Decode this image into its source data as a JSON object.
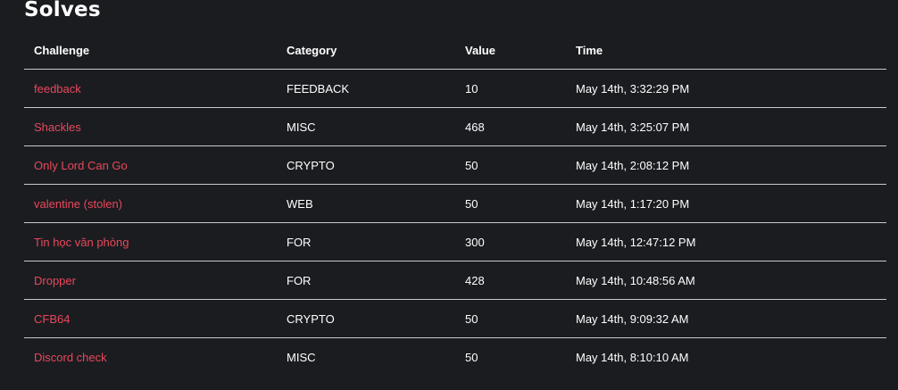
{
  "page": {
    "title": "Solves"
  },
  "table": {
    "headers": {
      "challenge": "Challenge",
      "category": "Category",
      "value": "Value",
      "time": "Time"
    },
    "rows": [
      {
        "challenge": "feedback",
        "category": "FEEDBACK",
        "value": "10",
        "time": "May 14th, 3:32:29 PM"
      },
      {
        "challenge": "Shackles",
        "category": "MISC",
        "value": "468",
        "time": "May 14th, 3:25:07 PM"
      },
      {
        "challenge": "Only Lord Can Go",
        "category": "CRYPTO",
        "value": "50",
        "time": "May 14th, 2:08:12 PM"
      },
      {
        "challenge": "valentine (stolen)",
        "category": "WEB",
        "value": "50",
        "time": "May 14th, 1:17:20 PM"
      },
      {
        "challenge": "Tin học văn phòng",
        "category": "FOR",
        "value": "300",
        "time": "May 14th, 12:47:12 PM"
      },
      {
        "challenge": "Dropper",
        "category": "FOR",
        "value": "428",
        "time": "May 14th, 10:48:56 AM"
      },
      {
        "challenge": "CFB64",
        "category": "CRYPTO",
        "value": "50",
        "time": "May 14th, 9:09:32 AM"
      },
      {
        "challenge": "Discord check",
        "category": "MISC",
        "value": "50",
        "time": "May 14th, 8:10:10 AM"
      }
    ]
  },
  "colors": {
    "background": "#1b1c20",
    "link": "#e8485b",
    "text": "#ffffff",
    "divider": "#c9c9c9"
  }
}
